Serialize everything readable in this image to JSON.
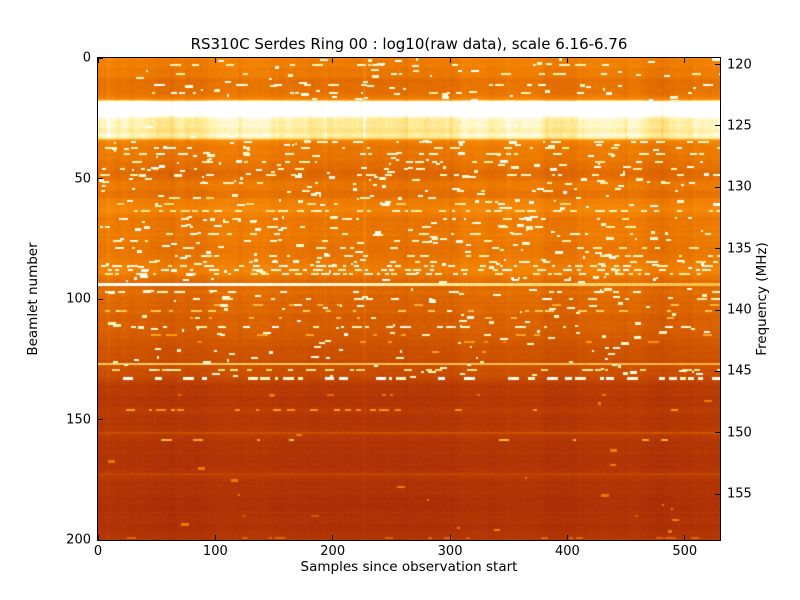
{
  "chart_data": {
    "type": "heatmap",
    "title": "RS310C Serdes Ring 00 : log10(raw data), scale 6.16-6.76",
    "xlabel": "Samples since observation start",
    "ylabel_left": "Beamlet number",
    "ylabel_right": "Frequency (MHz)",
    "scale_range_log10": [
      6.16,
      6.76
    ],
    "x_range": [
      0,
      530
    ],
    "beamlet_range": [
      0,
      200
    ],
    "freq_range_mhz": [
      119.47,
      158.73
    ],
    "x_ticks": [
      0,
      100,
      200,
      300,
      400,
      500
    ],
    "beamlet_ticks": [
      0,
      50,
      100,
      150,
      200
    ],
    "freq_ticks": [
      120,
      125,
      130,
      135,
      140,
      145,
      150,
      155
    ],
    "grid": false,
    "legend": "none",
    "colormap_stops": [
      [
        0.0,
        "#500A00"
      ],
      [
        0.22,
        "#962404"
      ],
      [
        0.3,
        "#AE3206"
      ],
      [
        0.4,
        "#C34702"
      ],
      [
        0.5,
        "#D55C00"
      ],
      [
        0.62,
        "#EE7C00"
      ],
      [
        0.72,
        "#FB9310"
      ],
      [
        0.8,
        "#FFB33A"
      ],
      [
        0.88,
        "#FFD96E"
      ],
      [
        0.94,
        "#FFF2A8"
      ],
      [
        1.0,
        "#FFFFFF"
      ]
    ],
    "row_profile_points": [
      [
        0,
        0.65
      ],
      [
        1,
        0.62
      ],
      [
        3,
        0.63
      ],
      [
        5,
        0.615
      ],
      [
        7,
        0.625
      ],
      [
        9,
        0.56
      ],
      [
        10,
        0.585
      ],
      [
        12,
        0.57
      ],
      [
        14,
        0.59
      ],
      [
        16,
        0.615
      ],
      [
        17,
        0.68
      ],
      [
        18,
        1.06
      ],
      [
        23.5,
        1.06
      ],
      [
        24.5,
        0.97
      ],
      [
        25.5,
        0.95
      ],
      [
        27,
        0.94
      ],
      [
        30,
        0.93
      ],
      [
        32,
        0.94
      ],
      [
        33,
        0.925
      ],
      [
        34,
        0.68
      ],
      [
        35,
        0.635
      ],
      [
        37,
        0.615
      ],
      [
        40,
        0.605
      ],
      [
        43,
        0.59
      ],
      [
        45,
        0.565
      ],
      [
        47,
        0.55
      ],
      [
        49,
        0.56
      ],
      [
        51,
        0.595
      ],
      [
        53,
        0.605
      ],
      [
        55,
        0.58
      ],
      [
        57,
        0.565
      ],
      [
        59,
        0.63
      ],
      [
        61,
        0.655
      ],
      [
        63,
        0.67
      ],
      [
        64,
        0.64
      ],
      [
        66,
        0.605
      ],
      [
        68,
        0.595
      ],
      [
        70,
        0.605
      ],
      [
        73,
        0.615
      ],
      [
        75,
        0.6
      ],
      [
        78,
        0.585
      ],
      [
        80,
        0.595
      ],
      [
        83,
        0.605
      ],
      [
        85,
        0.62
      ],
      [
        87,
        0.635
      ],
      [
        89,
        0.625
      ],
      [
        91,
        0.585
      ],
      [
        93,
        0.555
      ],
      [
        95,
        0.545
      ],
      [
        97,
        0.56
      ],
      [
        99,
        0.545
      ],
      [
        101,
        0.535
      ],
      [
        103,
        0.53
      ],
      [
        105,
        0.535
      ],
      [
        107,
        0.515
      ],
      [
        109,
        0.51
      ],
      [
        111,
        0.52
      ],
      [
        113,
        0.5
      ],
      [
        115,
        0.495
      ],
      [
        117,
        0.485
      ],
      [
        119,
        0.465
      ],
      [
        121,
        0.455
      ],
      [
        123,
        0.445
      ],
      [
        125,
        0.43
      ],
      [
        126.5,
        0.425
      ],
      [
        128,
        0.46
      ],
      [
        129,
        0.45
      ],
      [
        131,
        0.43
      ],
      [
        132.5,
        0.42
      ],
      [
        134,
        0.385
      ],
      [
        136,
        0.35
      ],
      [
        138,
        0.335
      ],
      [
        141,
        0.33
      ],
      [
        144,
        0.335
      ],
      [
        146,
        0.36
      ],
      [
        148,
        0.335
      ],
      [
        150,
        0.325
      ],
      [
        152,
        0.33
      ],
      [
        154,
        0.335
      ],
      [
        156,
        0.36
      ],
      [
        158,
        0.335
      ],
      [
        160,
        0.315
      ],
      [
        163,
        0.32
      ],
      [
        166,
        0.315
      ],
      [
        169,
        0.31
      ],
      [
        171,
        0.325
      ],
      [
        173,
        0.34
      ],
      [
        175,
        0.315
      ],
      [
        178,
        0.305
      ],
      [
        182,
        0.3
      ],
      [
        186,
        0.295
      ],
      [
        190,
        0.3
      ],
      [
        194,
        0.305
      ],
      [
        198,
        0.315
      ],
      [
        200,
        0.315
      ]
    ],
    "column_streaks": [
      [
        8,
        0.05
      ],
      [
        62,
        -0.04
      ],
      [
        120,
        -0.045
      ],
      [
        193,
        0.05
      ],
      [
        226,
        0.09
      ],
      [
        262,
        -0.04
      ],
      [
        300,
        -0.05
      ],
      [
        349,
        0.04
      ],
      [
        381,
        -0.04
      ],
      [
        410,
        0.05
      ],
      [
        449,
        -0.045
      ],
      [
        480,
        -0.05
      ],
      [
        508,
        0.04
      ]
    ],
    "dash_rows": [
      [
        3,
        0.1,
        0.95,
        2
      ],
      [
        6.5,
        0.14,
        0.97,
        2
      ],
      [
        11,
        0.22,
        0.97,
        2
      ],
      [
        14.5,
        0.12,
        0.95,
        2
      ],
      [
        35,
        0.3,
        0.97,
        2
      ],
      [
        37.5,
        0.25,
        0.96,
        2
      ],
      [
        40,
        0.22,
        0.96,
        2
      ],
      [
        43,
        0.18,
        0.95,
        2
      ],
      [
        46,
        0.15,
        0.95,
        2
      ],
      [
        48.5,
        0.2,
        0.96,
        2
      ],
      [
        52,
        0.18,
        0.95,
        2
      ],
      [
        55,
        0.15,
        0.94,
        2
      ],
      [
        58,
        0.12,
        0.92,
        2
      ],
      [
        60.5,
        0.18,
        0.9,
        2
      ],
      [
        63.5,
        0.6,
        0.93,
        2
      ],
      [
        67,
        0.15,
        0.95,
        2
      ],
      [
        70,
        0.2,
        0.96,
        2
      ],
      [
        73,
        0.22,
        0.96,
        2
      ],
      [
        76,
        0.18,
        0.95,
        2
      ],
      [
        79,
        0.2,
        0.95,
        2
      ],
      [
        82,
        0.22,
        0.96,
        2
      ],
      [
        84.5,
        0.25,
        0.96,
        2
      ],
      [
        86.5,
        0.55,
        0.97,
        2
      ],
      [
        88,
        0.7,
        0.98,
        2
      ],
      [
        89.5,
        0.6,
        0.95,
        2
      ],
      [
        97,
        0.25,
        0.97,
        2
      ],
      [
        100,
        0.28,
        0.97,
        2
      ],
      [
        102.5,
        0.15,
        0.8,
        2
      ],
      [
        105,
        0.25,
        0.85,
        2
      ],
      [
        108,
        0.12,
        0.8,
        2
      ],
      [
        111.5,
        0.3,
        0.97,
        2
      ],
      [
        115,
        0.2,
        0.75,
        2
      ],
      [
        118,
        0.1,
        0.7,
        2
      ],
      [
        122,
        0.1,
        0.72,
        2
      ],
      [
        129.5,
        0.35,
        0.9,
        2
      ],
      [
        133,
        0.6,
        0.98,
        3
      ],
      [
        140,
        0.06,
        0.6,
        2
      ],
      [
        146,
        0.3,
        0.72,
        2
      ],
      [
        158.5,
        0.1,
        0.78,
        2
      ],
      [
        190,
        0.08,
        0.5,
        2
      ],
      [
        199,
        0.25,
        0.55,
        2
      ]
    ],
    "lines": [
      [
        94,
        3,
        1.05,
        0.82
      ],
      [
        127,
        2,
        0.86,
        0.8
      ],
      [
        155.8,
        2,
        0.43,
        0.46
      ],
      [
        172.8,
        2,
        0.39,
        0.39
      ]
    ],
    "blobs": {
      "count": 540,
      "wmin": 2,
      "wmax": 9,
      "regions": [
        [
          0,
          18,
          1.2,
          0.98
        ],
        [
          26,
          33,
          0.25,
          0.99
        ],
        [
          34,
          62,
          2.2,
          0.98
        ],
        [
          65,
          93,
          2.0,
          0.98
        ],
        [
          95,
          132,
          1.3,
          0.97
        ],
        [
          136,
          199,
          0.15,
          0.62
        ]
      ]
    },
    "noise": {
      "seed": 42,
      "row_jitter": 0.012,
      "pixel": 0.016,
      "col_walk": 0.012
    }
  }
}
